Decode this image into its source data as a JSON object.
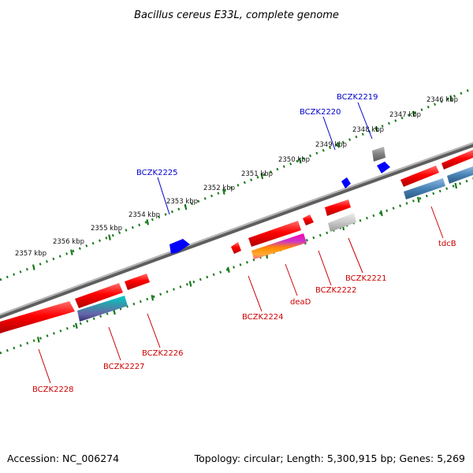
{
  "title": "Bacillus cereus E33L, complete genome",
  "footer": {
    "accession": "Accession: NC_006274",
    "topology": "Topology: circular; Length: 5,300,915 bp; Genes: 5,269"
  },
  "colors": {
    "ruler": "#1a7a1a",
    "backbone": "#808080",
    "forward_gene": "#ff0000",
    "reverse_gene": "#ff1010",
    "label_forward": "#0000cc",
    "label_reverse": "#cc0000",
    "small_blue": "#0000ff",
    "pseudo_gray": "#6a6a6a",
    "light_gray": "#c0c0c0",
    "steel_blue": "#4682b4"
  },
  "ruler": {
    "unit": "kbp",
    "upper_ticks": [
      "2346 kbp",
      "2347 kbp",
      "2348 kbp",
      "2349 kbp",
      "2350 kbp",
      "2351 kbp",
      "2352 kbp",
      "2353 kbp",
      "2354 kbp",
      "2355 kbp",
      "2356 kbp",
      "2357 kbp"
    ]
  },
  "features": [
    {
      "name": "BCZK2219",
      "strand": "forward"
    },
    {
      "name": "BCZK2220",
      "strand": "forward"
    },
    {
      "name": "BCZK2225",
      "strand": "forward"
    },
    {
      "name": "tdcB",
      "strand": "reverse"
    },
    {
      "name": "BCZK2221",
      "strand": "reverse"
    },
    {
      "name": "BCZK2222",
      "strand": "reverse"
    },
    {
      "name": "deaD",
      "strand": "reverse"
    },
    {
      "name": "BCZK2224",
      "strand": "reverse"
    },
    {
      "name": "BCZK2226",
      "strand": "reverse"
    },
    {
      "name": "BCZK2227",
      "strand": "reverse"
    },
    {
      "name": "BCZK2228",
      "strand": "reverse"
    }
  ]
}
